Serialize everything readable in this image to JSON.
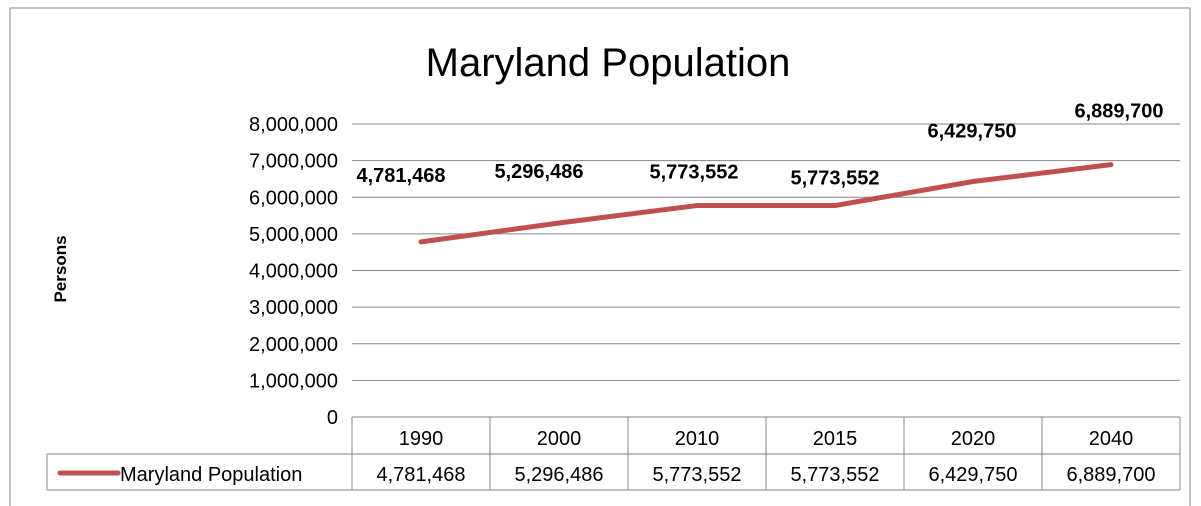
{
  "chart_data": {
    "type": "line",
    "title": "Maryland Population",
    "ylabel": "Persons",
    "xlabel": "",
    "categories": [
      "1990",
      "2000",
      "2010",
      "2015",
      "2020",
      "2040"
    ],
    "series": [
      {
        "name": "Maryland Population",
        "values": [
          4781468,
          5296486,
          5773552,
          5773552,
          6429750,
          6889700
        ],
        "labels": [
          "4,781,468",
          "5,296,486",
          "5,773,552",
          "5,773,552",
          "6,429,750",
          "6,889,700"
        ],
        "color": "#C0504D"
      }
    ],
    "ylim": [
      0,
      8000000
    ],
    "yticks": [
      0,
      1000000,
      2000000,
      3000000,
      4000000,
      5000000,
      6000000,
      7000000,
      8000000
    ],
    "ytick_labels": [
      "0",
      "1,000,000",
      "2,000,000",
      "3,000,000",
      "4,000,000",
      "5,000,000",
      "6,000,000",
      "7,000,000",
      "8,000,000"
    ],
    "grid": true,
    "data_table": true
  }
}
